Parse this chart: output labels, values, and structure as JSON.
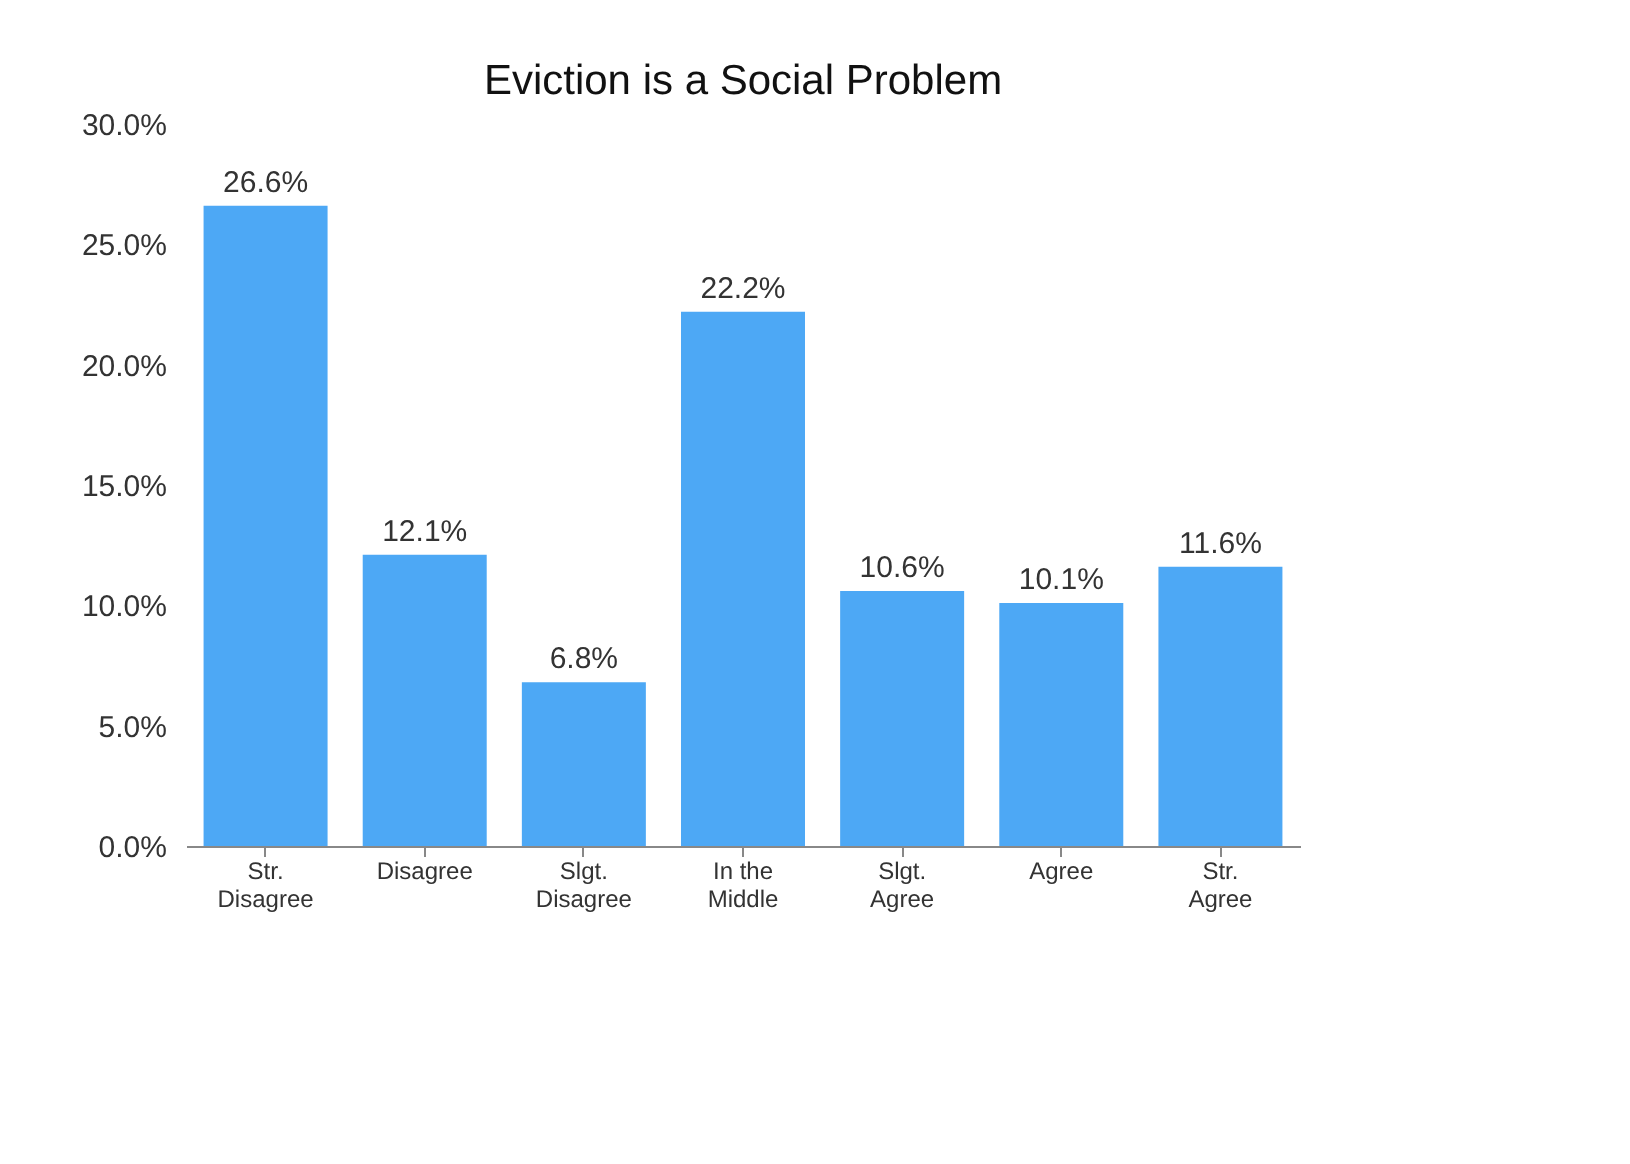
{
  "chart_data": {
    "type": "bar",
    "title": "Eviction is a Social Problem",
    "categories": [
      "Str. Disagree",
      "Disagree",
      "Slgt. Disagree",
      "In the Middle",
      "Slgt. Agree",
      "Agree",
      "Str. Agree"
    ],
    "values": [
      26.6,
      12.1,
      6.8,
      22.2,
      10.6,
      10.1,
      11.6
    ],
    "value_labels": [
      "26.6%",
      "12.1%",
      "6.8%",
      "22.2%",
      "10.6%",
      "10.1%",
      "11.6%"
    ],
    "color": "#4da8f5",
    "ylim": [
      0,
      30
    ],
    "yticks": [
      {
        "value": 0,
        "label": "0.0%"
      },
      {
        "value": 5,
        "label": "5.0%"
      },
      {
        "value": 10,
        "label": "10.0%"
      },
      {
        "value": 15,
        "label": "15.0%"
      },
      {
        "value": 20,
        "label": "20.0%"
      },
      {
        "value": 25,
        "label": "25.0%"
      },
      {
        "value": 30,
        "label": "30.0%"
      }
    ],
    "grid": false
  }
}
